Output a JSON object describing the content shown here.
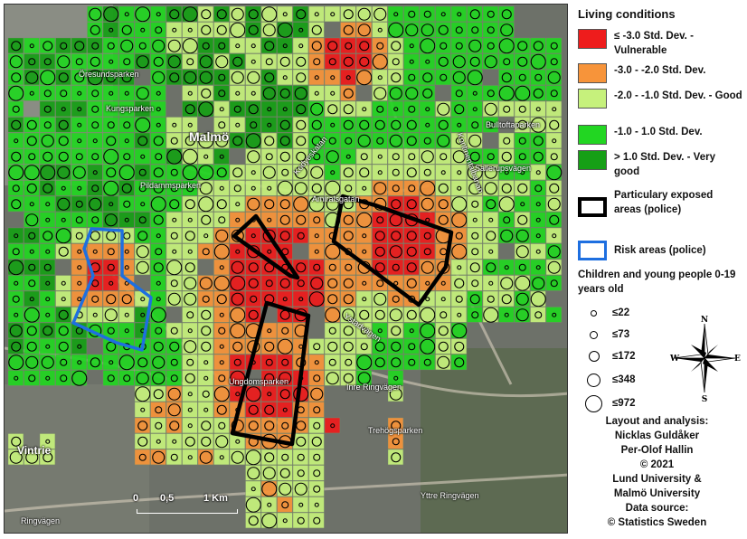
{
  "map": {
    "labels": {
      "malmo": "Malmö",
      "oresundsparken": "Öresundsparken",
      "kungsparken": "Kungsparken",
      "pildammsparken": "Pildammsparken",
      "bulltoftaparken": "Bulltoftaparken",
      "sallerupsvagen": "Sallerupsvägen",
      "amiralsgatan": "Amiralsgatan",
      "kontinentalbanan": "Kontinentalbanan",
      "kodyeskatan": "Kodyeskatan",
      "ystadvagen": "Ystadvägen",
      "inre_ringvagen": "Inre Ringvägen",
      "yttre_ringvagen": "Yttre Ringvägen",
      "trehogsparken": "Trehögsparken",
      "ungdomsparken": "Ungdomsparken",
      "vintrie": "Vintrie",
      "ringvagen": "Ringvägen"
    },
    "scale": {
      "zero": "0",
      "half": "0,5",
      "one": "1 Km"
    }
  },
  "legend": {
    "title": "Living conditions",
    "classes": [
      {
        "label": "≤ -3.0 Std. Dev. - Vulnerable",
        "color": "#ee1c1c"
      },
      {
        "label": "-3.0 - -2.0 Std. Dev.",
        "color": "#f7943a"
      },
      {
        "label": "-2.0 - -1.0 Std. Dev. - Good",
        "color": "#c6f17c"
      },
      {
        "label": "-1.0 - 1.0 Std. Dev.",
        "color": "#22d622"
      },
      {
        "label": "> 1.0 Std. Dev. - Very good",
        "color": "#169f16"
      }
    ],
    "particularly_exposed": "Particulary exposed areas (police)",
    "particularly_exposed_color": "#000000",
    "risk_areas": "Risk areas (police)",
    "risk_areas_color": "#1e6fe0",
    "children_title": "Children and young people 0-19 years old",
    "sizes": [
      "≤22",
      "≤73",
      "≤172",
      "≤348",
      "≤972"
    ]
  },
  "compass": {
    "n": "N",
    "s": "S",
    "e": "E",
    "w": "W"
  },
  "credits": {
    "layout": "Layout and analysis:",
    "author1": "Nicklas Guldåker",
    "author2": "Per-Olof Hallin",
    "year": "© 2021",
    "uni1": "Lund University &",
    "uni2": "Malmö University",
    "source_label": "Data source:",
    "source": "© Statistics Sweden"
  }
}
